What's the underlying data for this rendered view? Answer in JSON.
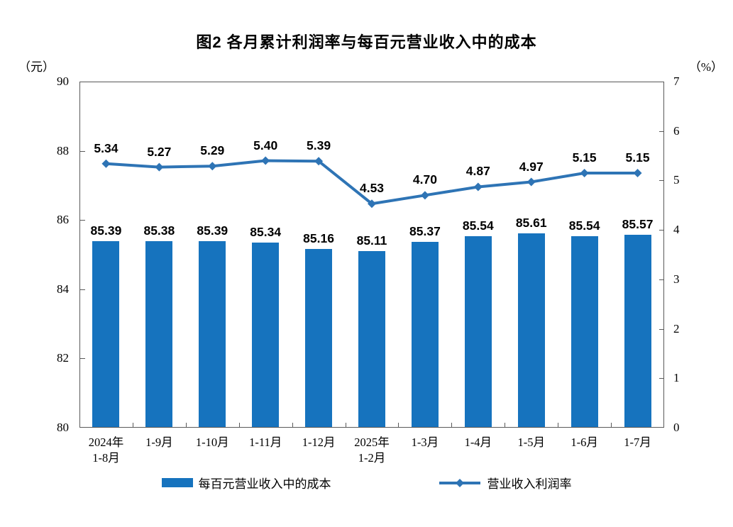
{
  "title": "图2 各月累计利润率与每百元营业收入中的成本",
  "left_axis": {
    "unit": "（元）",
    "ticks": [
      90,
      88,
      86,
      84,
      82,
      80
    ],
    "min": 80,
    "max": 90
  },
  "right_axis": {
    "unit": "（%）",
    "ticks": [
      7,
      6,
      5,
      4,
      3,
      2,
      1,
      0
    ],
    "min": 0,
    "max": 7
  },
  "legend": [
    {
      "label": "每百元营业收入中的成本",
      "type": "bar"
    },
    {
      "label": "营业收入利润率",
      "type": "line"
    }
  ],
  "colors": {
    "bar": "#1673BE",
    "line": "#2E74B5",
    "axis": "#595959",
    "text": "#000000"
  },
  "chart_data": {
    "type": "bar+line",
    "categories": [
      [
        "2024年",
        "1-8月"
      ],
      [
        "1-9月"
      ],
      [
        "1-10月"
      ],
      [
        "1-11月"
      ],
      [
        "1-12月"
      ],
      [
        "2025年",
        "1-2月"
      ],
      [
        "1-3月"
      ],
      [
        "1-4月"
      ],
      [
        "1-5月"
      ],
      [
        "1-6月"
      ],
      [
        "1-7月"
      ]
    ],
    "series": [
      {
        "name": "每百元营业收入中的成本",
        "type": "bar",
        "axis": "left",
        "values": [
          85.39,
          85.38,
          85.39,
          85.34,
          85.16,
          85.11,
          85.37,
          85.54,
          85.61,
          85.54,
          85.57
        ]
      },
      {
        "name": "营业收入利润率",
        "type": "line",
        "axis": "right",
        "values": [
          5.34,
          5.27,
          5.29,
          5.4,
          5.39,
          4.53,
          4.7,
          4.87,
          4.97,
          5.15,
          5.15
        ]
      }
    ],
    "left_ylim": [
      80,
      90
    ],
    "right_ylim": [
      0,
      7
    ],
    "grid": false,
    "legend_position": "bottom",
    "value_label_decimals": 2
  }
}
